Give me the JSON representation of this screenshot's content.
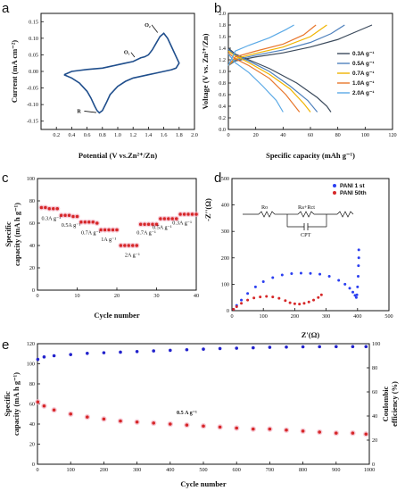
{
  "colors": {
    "cv": "#1f4e8c",
    "rate": "#d62728",
    "rate_band": "#f4b6c8",
    "nyq1": "#2b3ff0",
    "nyq2": "#d62728",
    "cycle_cap": "#d62728",
    "cycle_ce": "#2222cc",
    "gcd": [
      "#3b4a5c",
      "#4f81bd",
      "#f0b400",
      "#e8762b",
      "#5aa9e6"
    ]
  },
  "chart_data": [
    {
      "id": "a",
      "panel_label": "a",
      "type": "line",
      "xlabel": "Potential (V vs.Zn²⁺/Zn)",
      "ylabel": "Current (mA cm⁻²)",
      "xlim": [
        0.0,
        2.0
      ],
      "ylim": [
        -0.175,
        0.175
      ],
      "xticks": [
        0.2,
        0.4,
        0.6,
        0.8,
        1.0,
        1.2,
        1.4,
        1.6,
        1.8,
        2.0
      ],
      "xtick_labels": [
        "0.2",
        "0.4",
        "0.6",
        "0.8",
        "1.0",
        "1.2",
        "1.4",
        "1.6",
        "1.8",
        "2.0"
      ],
      "yticks": [
        -0.15,
        -0.1,
        -0.05,
        0.0,
        0.05,
        0.1,
        0.15
      ],
      "ytick_labels": [
        "-0.15",
        "-0.10",
        "-0.05",
        "0.00",
        "0.05",
        "0.10",
        "0.15"
      ],
      "annotations": [
        {
          "text": "O₂",
          "x": 1.35,
          "y": 0.135,
          "ax": 1.52,
          "ay": 0.117
        },
        {
          "text": "O₁",
          "x": 1.08,
          "y": 0.052,
          "ax": 1.22,
          "ay": 0.043
        },
        {
          "text": "R",
          "x": 0.47,
          "y": -0.125,
          "ax": 0.72,
          "ay": -0.124
        }
      ],
      "x": [
        0.3,
        0.4,
        0.5,
        0.6,
        0.65,
        0.7,
        0.73,
        0.76,
        0.8,
        0.85,
        0.9,
        1.0,
        1.1,
        1.2,
        1.3,
        1.4,
        1.5,
        1.6,
        1.7,
        1.76,
        1.8,
        1.75,
        1.7,
        1.65,
        1.6,
        1.55,
        1.5,
        1.45,
        1.4,
        1.35,
        1.3,
        1.2,
        1.1,
        1.0,
        0.9,
        0.8,
        0.7,
        0.6,
        0.5,
        0.4,
        0.3
      ],
      "y": [
        -0.01,
        -0.02,
        -0.035,
        -0.06,
        -0.08,
        -0.105,
        -0.118,
        -0.125,
        -0.118,
        -0.095,
        -0.07,
        -0.045,
        -0.03,
        -0.02,
        -0.015,
        -0.01,
        -0.005,
        0.0,
        0.005,
        0.01,
        0.025,
        0.05,
        0.075,
        0.1,
        0.115,
        0.105,
        0.085,
        0.065,
        0.05,
        0.044,
        0.041,
        0.03,
        0.025,
        0.02,
        0.015,
        0.01,
        0.008,
        0.006,
        0.003,
        0.0,
        -0.01
      ]
    },
    {
      "id": "b",
      "panel_label": "b",
      "type": "line",
      "xlabel": "Specific capacity (mAh g⁻¹)",
      "ylabel": "Voltage (V vs. Zn²⁺/Zn)",
      "xlim": [
        0,
        120
      ],
      "ylim": [
        0.0,
        2.0
      ],
      "xticks": [
        0,
        20,
        40,
        60,
        80,
        100,
        120
      ],
      "xtick_labels": [
        "0",
        "20",
        "40",
        "60",
        "80",
        "100",
        "120"
      ],
      "yticks": [
        0.0,
        0.2,
        0.4,
        0.6,
        0.8,
        1.0,
        1.2,
        1.4,
        1.6,
        1.8,
        2.0
      ],
      "ytick_labels": [
        "0.0",
        "0.2",
        "0.4",
        "0.6",
        "0.8",
        "1.0",
        "1.2",
        "1.4",
        "1.6",
        "1.8",
        "2.0"
      ],
      "legend_position": "right",
      "series": [
        {
          "name": "0.3A g⁻¹",
          "charge_x": [
            0,
            5,
            20,
            40,
            60,
            80,
            95,
            105
          ],
          "charge_y": [
            1.1,
            1.18,
            1.25,
            1.32,
            1.42,
            1.55,
            1.7,
            1.8
          ],
          "discharge_x": [
            0,
            5,
            15,
            30,
            50,
            65,
            72,
            75
          ],
          "discharge_y": [
            1.4,
            1.3,
            1.2,
            1.05,
            0.8,
            0.55,
            0.4,
            0.3
          ]
        },
        {
          "name": "0.5A g⁻¹",
          "charge_x": [
            0,
            5,
            20,
            40,
            60,
            75,
            85
          ],
          "charge_y": [
            1.1,
            1.2,
            1.28,
            1.37,
            1.5,
            1.65,
            1.8
          ],
          "discharge_x": [
            0,
            5,
            15,
            30,
            45,
            58,
            65
          ],
          "discharge_y": [
            1.38,
            1.28,
            1.18,
            1.0,
            0.75,
            0.5,
            0.3
          ]
        },
        {
          "name": "0.7A g⁻¹",
          "charge_x": [
            0,
            5,
            20,
            40,
            60,
            72
          ],
          "charge_y": [
            1.1,
            1.22,
            1.31,
            1.42,
            1.6,
            1.8
          ],
          "discharge_x": [
            0,
            5,
            15,
            30,
            45,
            55,
            60
          ],
          "discharge_y": [
            1.35,
            1.27,
            1.15,
            0.95,
            0.7,
            0.45,
            0.3
          ]
        },
        {
          "name": "1.0A g⁻¹",
          "charge_x": [
            0,
            5,
            20,
            40,
            55,
            64
          ],
          "charge_y": [
            1.1,
            1.25,
            1.35,
            1.47,
            1.63,
            1.8
          ],
          "discharge_x": [
            0,
            5,
            15,
            30,
            42,
            52
          ],
          "discharge_y": [
            1.32,
            1.22,
            1.1,
            0.88,
            0.6,
            0.3
          ]
        },
        {
          "name": "2.0A g⁻¹",
          "charge_x": [
            0,
            5,
            15,
            30,
            42,
            48
          ],
          "charge_y": [
            1.1,
            1.35,
            1.45,
            1.58,
            1.72,
            1.8
          ],
          "discharge_x": [
            0,
            5,
            15,
            25,
            35,
            40
          ],
          "discharge_y": [
            1.3,
            1.15,
            0.98,
            0.75,
            0.5,
            0.3
          ]
        }
      ]
    },
    {
      "id": "c",
      "panel_label": "c",
      "type": "scatter",
      "xlabel": "Cycle number",
      "ylabel": "Specific capacity (mA h g⁻¹)",
      "xlim": [
        0,
        40
      ],
      "ylim": [
        0,
        100
      ],
      "xticks": [
        0,
        10,
        20,
        30,
        40
      ],
      "xtick_labels": [
        "0",
        "10",
        "20",
        "30",
        "40"
      ],
      "yticks": [
        0,
        20,
        40,
        60,
        80,
        100
      ],
      "ytick_labels": [
        "0",
        "20",
        "40",
        "60",
        "80",
        "100"
      ],
      "x": [
        1,
        2,
        3,
        4,
        5,
        6,
        7,
        8,
        9,
        10,
        11,
        12,
        13,
        14,
        15,
        16,
        17,
        18,
        19,
        20,
        21,
        22,
        23,
        24,
        25,
        26,
        27,
        28,
        29,
        30,
        31,
        32,
        33,
        34,
        35,
        36,
        37,
        38,
        39,
        40
      ],
      "y": [
        74,
        74,
        73,
        73,
        73,
        67,
        67,
        67,
        66,
        66,
        61,
        61,
        61,
        61,
        60,
        54,
        54,
        54,
        54,
        54,
        40,
        40,
        40,
        40,
        40,
        59,
        59,
        59,
        59,
        59,
        64,
        64,
        64,
        64,
        64,
        68,
        68,
        68,
        68,
        68
      ],
      "annotations": [
        {
          "text": "0.3A g⁻¹",
          "x": 1,
          "y": 63
        },
        {
          "text": "0.5A g⁻¹",
          "x": 6,
          "y": 57
        },
        {
          "text": "0.7A g⁻¹",
          "x": 11,
          "y": 50
        },
        {
          "text": "1A g⁻¹",
          "x": 16,
          "y": 44
        },
        {
          "text": "2A g⁻¹",
          "x": 22,
          "y": 30
        },
        {
          "text": "0.7A g⁻¹",
          "x": 25,
          "y": 50
        },
        {
          "text": "0.5A g⁻¹",
          "x": 29,
          "y": 55
        },
        {
          "text": "0.3A g⁻¹",
          "x": 34,
          "y": 59
        }
      ]
    },
    {
      "id": "d",
      "panel_label": "d",
      "type": "scatter",
      "xlabel": "Z'(Ω)",
      "ylabel": "-Z''(Ω)",
      "xlim": [
        0,
        500
      ],
      "ylim": [
        0,
        500
      ],
      "xticks": [
        0,
        100,
        200,
        300,
        400,
        500
      ],
      "xtick_labels": [
        "0",
        "100",
        "200",
        "300",
        "400",
        "500"
      ],
      "yticks": [
        0,
        100,
        200,
        300,
        400,
        500
      ],
      "ytick_labels": [
        "0",
        "100",
        "200",
        "300",
        "400",
        "500"
      ],
      "legend_position": "top-right",
      "circuit_labels": [
        "Ro",
        "Ra+Rct",
        "CPT"
      ],
      "series": [
        {
          "name": "PANI 1 st",
          "x": [
            5,
            15,
            30,
            50,
            75,
            100,
            130,
            160,
            190,
            220,
            250,
            280,
            310,
            340,
            360,
            375,
            385,
            392,
            396,
            398,
            400,
            402,
            403,
            404,
            404
          ],
          "y": [
            5,
            20,
            40,
            65,
            90,
            110,
            125,
            135,
            140,
            142,
            141,
            138,
            130,
            115,
            100,
            85,
            70,
            58,
            50,
            60,
            90,
            130,
            170,
            200,
            230
          ]
        },
        {
          "name": "PANI 50th",
          "x": [
            5,
            15,
            30,
            50,
            70,
            90,
            110,
            130,
            150,
            170,
            185,
            200,
            215,
            230,
            245,
            260,
            275,
            285
          ],
          "y": [
            5,
            15,
            28,
            40,
            48,
            52,
            54,
            52,
            47,
            38,
            30,
            26,
            25,
            28,
            33,
            40,
            50,
            60
          ]
        }
      ]
    },
    {
      "id": "e",
      "panel_label": "e",
      "type": "scatter",
      "xlabel": "Cycle number",
      "ylabel": "Specific capacity (mA h g⁻¹)",
      "y2label": "Coulombic efficiency (%)",
      "xlim": [
        0,
        1000
      ],
      "ylim": [
        0,
        120
      ],
      "y2lim": [
        0,
        100
      ],
      "xticks": [
        0,
        100,
        200,
        300,
        400,
        500,
        600,
        700,
        800,
        900,
        1000
      ],
      "xtick_labels": [
        "0",
        "100",
        "200",
        "300",
        "400",
        "500",
        "600",
        "700",
        "800",
        "900",
        "1000"
      ],
      "yticks": [
        0,
        20,
        40,
        60,
        80,
        100,
        120
      ],
      "ytick_labels": [
        "0",
        "20",
        "40",
        "60",
        "80",
        "100",
        "120"
      ],
      "y2ticks": [
        0,
        20,
        40,
        60,
        80,
        100
      ],
      "y2tick_labels": [
        "0",
        "20",
        "40",
        "60",
        "80",
        "100"
      ],
      "annotation": "0.5 A g⁻¹",
      "series": [
        {
          "name": "capacity",
          "x": [
            1,
            20,
            50,
            100,
            150,
            200,
            250,
            300,
            350,
            400,
            450,
            500,
            550,
            600,
            650,
            700,
            750,
            800,
            850,
            900,
            950,
            990
          ],
          "y": [
            62,
            58,
            54,
            50,
            47,
            45,
            43,
            42,
            41,
            40,
            39,
            38,
            37,
            36,
            35,
            35,
            34,
            33,
            32,
            31,
            31,
            30
          ]
        },
        {
          "name": "coulombic efficiency",
          "x": [
            1,
            20,
            50,
            100,
            150,
            200,
            250,
            300,
            350,
            400,
            450,
            500,
            550,
            600,
            650,
            700,
            750,
            800,
            850,
            900,
            950,
            990
          ],
          "y": [
            87,
            89,
            90,
            91,
            92,
            92.5,
            93,
            93.5,
            94,
            94.5,
            95,
            95.5,
            96,
            96.3,
            96.6,
            97,
            97.2,
            97.4,
            97.5,
            97.6,
            97.6,
            97.6
          ]
        }
      ]
    }
  ]
}
